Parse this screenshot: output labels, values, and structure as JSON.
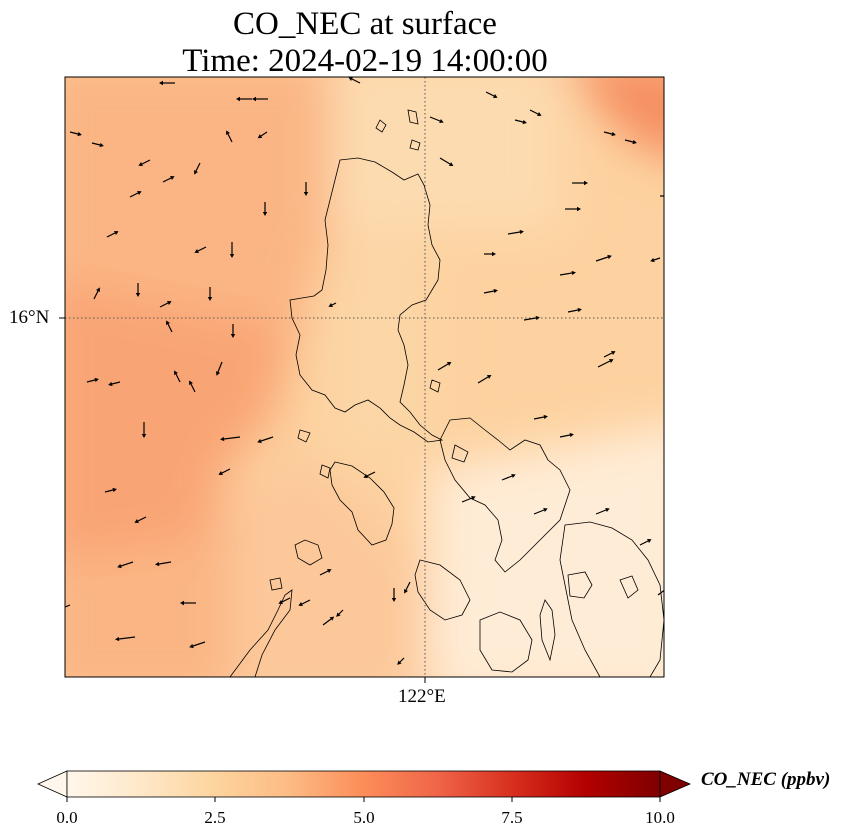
{
  "title": {
    "line1": "CO_NEC at surface",
    "line2": "Time: 2024-02-19 14:00:00"
  },
  "axes": {
    "lat_label": "16°N",
    "lon_label": "122°E"
  },
  "colorbar": {
    "label": "CO_NEC (ppbv)",
    "ticks": [
      "0.0",
      "2.5",
      "5.0",
      "7.5",
      "10.0"
    ],
    "range": [
      0,
      10
    ],
    "extend": "both",
    "colormap": "OrRd",
    "colors": [
      "#fff7ec",
      "#fee8c8",
      "#fdd49e",
      "#fdbb84",
      "#fc8d59",
      "#ef6548",
      "#d7301f",
      "#b30000",
      "#7f0000"
    ]
  },
  "map": {
    "field": "CO_NEC",
    "level": "surface",
    "gridlines": "dotted",
    "vectors": "wind",
    "coastlines": true
  }
}
